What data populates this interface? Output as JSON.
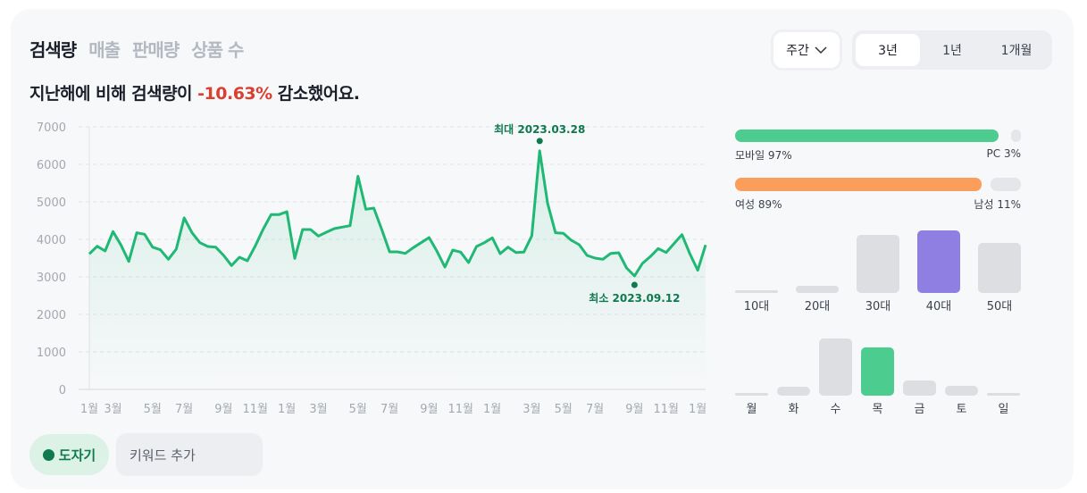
{
  "tabs": [
    {
      "label": "검색량",
      "active": true
    },
    {
      "label": "매출"
    },
    {
      "label": "판매량"
    },
    {
      "label": "상품 수"
    }
  ],
  "headline": {
    "prefix": "지난해에 비해 검색량이 ",
    "change": "-10.63%",
    "suffix": " 감소했어요."
  },
  "period_dropdown": {
    "value": "주간"
  },
  "range_tabs": [
    {
      "label": "3년",
      "selected": true
    },
    {
      "label": "1년"
    },
    {
      "label": "1개월"
    }
  ],
  "colors": {
    "line": "#1fb874",
    "mobile": "#4ccd8f",
    "female": "#fb9d5b",
    "highlight_age": "#8f7fe3",
    "highlight_day": "#4ccd8f",
    "inactive": "#dcdee2",
    "negative": "#d9402f"
  },
  "chart_data": {
    "type": "line",
    "ylim": [
      0,
      7000
    ],
    "yticks": [
      "0",
      "1000",
      "2000",
      "3000",
      "4000",
      "5000",
      "6000",
      "7000"
    ],
    "ytick_values": [
      0,
      1000,
      2000,
      3000,
      4000,
      5000,
      6000,
      7000
    ],
    "xticks": [
      {
        "x": 0,
        "label": "1월"
      },
      {
        "x": 3,
        "label": "3월"
      },
      {
        "x": 8,
        "label": "5월"
      },
      {
        "x": 12,
        "label": "7월"
      },
      {
        "x": 17,
        "label": "9월"
      },
      {
        "x": 21,
        "label": "11월"
      },
      {
        "x": 25,
        "label": "1월"
      },
      {
        "x": 29,
        "label": "3월"
      },
      {
        "x": 34,
        "label": "5월"
      },
      {
        "x": 38,
        "label": "7월"
      },
      {
        "x": 43,
        "label": "9월"
      },
      {
        "x": 47,
        "label": "11월"
      },
      {
        "x": 51,
        "label": "1월"
      },
      {
        "x": 56,
        "label": "3월"
      },
      {
        "x": 60,
        "label": "5월"
      },
      {
        "x": 64,
        "label": "7월"
      },
      {
        "x": 69,
        "label": "9월"
      },
      {
        "x": 73,
        "label": "11월"
      },
      {
        "x": 77,
        "label": "1월"
      }
    ],
    "grid": true,
    "series": [
      {
        "name": "도자기",
        "values": [
          3611,
          3817,
          3690,
          4206,
          3849,
          3413,
          4175,
          4135,
          3794,
          3722,
          3468,
          3738,
          4571,
          4175,
          3913,
          3810,
          3794,
          3571,
          3302,
          3524,
          3429,
          3825,
          4270,
          4659,
          4659,
          4738,
          3492,
          4262,
          4262,
          4087,
          4190,
          4286,
          4325,
          4365,
          5683,
          4802,
          4833,
          4270,
          3667,
          3667,
          3627,
          3778,
          3913,
          4048,
          3683,
          3262,
          3714,
          3659,
          3381,
          3810,
          3913,
          4040,
          3619,
          3794,
          3651,
          3659,
          4095,
          6360,
          4960,
          4175,
          4159,
          3976,
          3857,
          3571,
          3500,
          3468,
          3627,
          3643,
          3238,
          3024,
          3357,
          3540,
          3754,
          3651,
          3889,
          4127,
          3619,
          3175,
          3849
        ]
      }
    ],
    "annotations": [
      {
        "index": 57,
        "label": "최대 2023.03.28",
        "position": "above"
      },
      {
        "index": 69,
        "label": "최소 2023.09.12",
        "position": "below"
      }
    ]
  },
  "device": {
    "mobile_label": "모바일 97%",
    "pc_label": "PC 3%",
    "mobile_pct": 97
  },
  "gender": {
    "female_label": "여성 89%",
    "male_label": "남성 11%",
    "female_pct": 89
  },
  "age": [
    {
      "label": "10대",
      "v": 2
    },
    {
      "label": "20대",
      "v": 12
    },
    {
      "label": "30대",
      "v": 93
    },
    {
      "label": "40대",
      "v": 100,
      "highlight": true
    },
    {
      "label": "50대",
      "v": 80
    }
  ],
  "days": [
    {
      "label": "월",
      "v": 3
    },
    {
      "label": "화",
      "v": 16
    },
    {
      "label": "수",
      "v": 100
    },
    {
      "label": "목",
      "v": 84,
      "highlight": true
    },
    {
      "label": "금",
      "v": 27
    },
    {
      "label": "토",
      "v": 17
    },
    {
      "label": "일",
      "v": 5
    }
  ],
  "legend": {
    "keyword": "도자기",
    "add_placeholder": "키워드 추가"
  }
}
